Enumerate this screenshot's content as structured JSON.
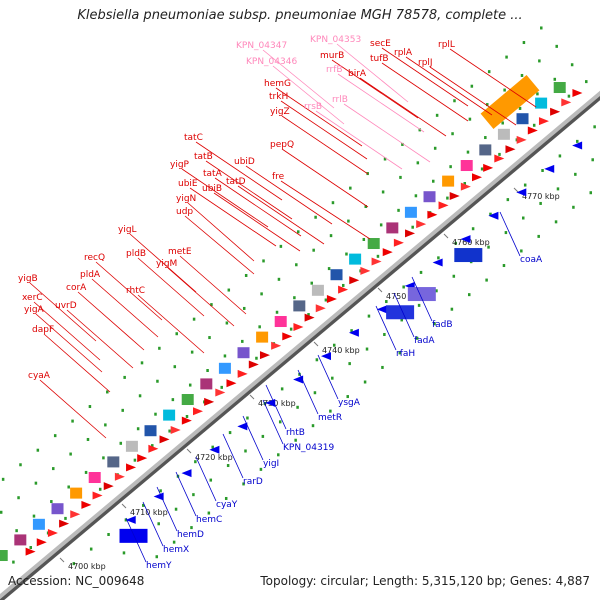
{
  "title": "Klebsiella pneumoniae subsp. pneumoniae MGH 78578, complete ...",
  "footer": {
    "accession": "Accession: NC_009648",
    "topology": "Topology: circular; Length: 5,315,120 bp; Genes: 4,887"
  },
  "colors": {
    "forward_label": "#dd0000",
    "reverse_label": "#0000cc",
    "rna_label": "#ff88bb",
    "backbone": "#888888"
  },
  "ticks": [
    "4700 kbp",
    "4710 kbp",
    "4720 kbp",
    "4730 kbp",
    "4740 kbp",
    "4750 kbp",
    "4760 kbp",
    "4770 kbp"
  ],
  "forward_genes": [
    "cyaA",
    "dapF",
    "yigA",
    "xerC",
    "yigB",
    "uvrD",
    "corA",
    "pldA",
    "recQ",
    "rhtC",
    "pldB",
    "yigL",
    "yigM",
    "metE",
    "udp",
    "yigN",
    "ubiE",
    "ubiB",
    "yigP",
    "tatA",
    "tatB",
    "tatC",
    "tatD",
    "ubiD",
    "fre",
    "pepQ",
    "yigZ",
    "trkH",
    "hemG",
    "murB",
    "birA",
    "secE",
    "tufB",
    "rplA",
    "rplJ",
    "rplL",
    "KPN_04347",
    "KPN_04346",
    "KPN_04353",
    "rrfB",
    "rrsB",
    "rrlB"
  ],
  "reverse_genes": [
    "hemY",
    "hemX",
    "hemD",
    "hemC",
    "cyaY",
    "rarD",
    "yigI",
    "rhtB",
    "KPN_04319",
    "metR",
    "ysgA",
    "rfaH",
    "fadA",
    "fadB",
    "coaA"
  ]
}
